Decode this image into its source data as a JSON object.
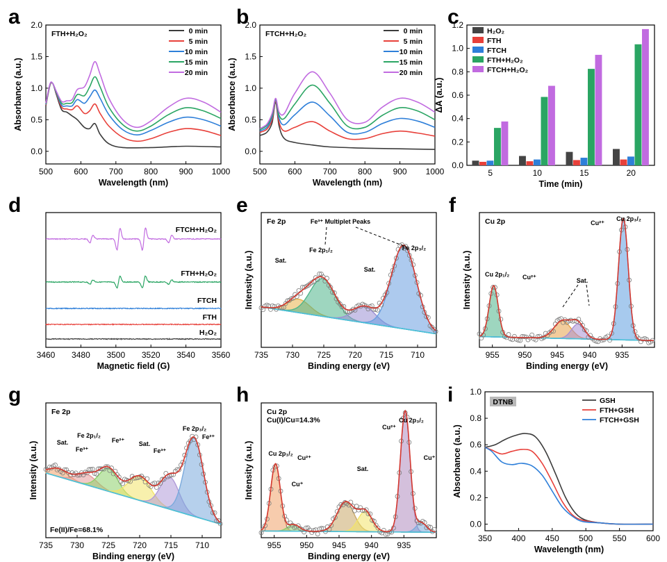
{
  "chart_data": [
    {
      "id": "a",
      "panel_label": "a",
      "type": "line",
      "title": "FTH+H₂O₂",
      "xlabel": "Wavelength (nm)",
      "ylabel": "Absorbance (a.u.)",
      "xlim": [
        500,
        1000
      ],
      "ylim": [
        -0.2,
        2.0
      ],
      "xticks": [
        "500",
        "600",
        "700",
        "800",
        "900",
        "1000"
      ],
      "yticks": [
        "0.0",
        "0.5",
        "1.0",
        "1.5",
        "2.0"
      ],
      "series": [
        {
          "name": "0 min",
          "color": "#3b3b3b",
          "x": [
            500,
            512,
            520,
            530,
            545,
            560,
            575,
            590,
            610,
            625,
            640,
            655,
            680,
            720,
            800,
            900,
            1000
          ],
          "y": [
            0.72,
            1.05,
            1.07,
            0.9,
            0.66,
            0.62,
            0.56,
            0.5,
            0.38,
            0.36,
            0.44,
            0.27,
            0.12,
            0.06,
            0.06,
            0.08,
            0.07
          ]
        },
        {
          "name": "5 min",
          "color": "#e8403a",
          "x": [
            500,
            512,
            520,
            530,
            545,
            560,
            575,
            590,
            610,
            625,
            640,
            655,
            680,
            720,
            760,
            800,
            850,
            900,
            950,
            1000
          ],
          "y": [
            0.73,
            1.05,
            1.07,
            0.92,
            0.7,
            0.67,
            0.66,
            0.72,
            0.6,
            0.64,
            0.75,
            0.6,
            0.4,
            0.22,
            0.16,
            0.2,
            0.3,
            0.36,
            0.33,
            0.25
          ]
        },
        {
          "name": "10 min",
          "color": "#2e7fd9",
          "x": [
            500,
            512,
            520,
            530,
            545,
            560,
            575,
            590,
            610,
            625,
            640,
            655,
            680,
            720,
            760,
            800,
            850,
            900,
            950,
            1000
          ],
          "y": [
            0.74,
            1.06,
            1.07,
            0.93,
            0.73,
            0.72,
            0.72,
            0.82,
            0.76,
            0.86,
            0.97,
            0.84,
            0.58,
            0.34,
            0.26,
            0.33,
            0.46,
            0.54,
            0.5,
            0.4
          ]
        },
        {
          "name": "15 min",
          "color": "#2aa563",
          "x": [
            500,
            512,
            520,
            530,
            545,
            560,
            575,
            590,
            610,
            625,
            640,
            655,
            680,
            720,
            760,
            800,
            850,
            900,
            950,
            1000
          ],
          "y": [
            0.75,
            1.06,
            1.07,
            0.94,
            0.76,
            0.76,
            0.77,
            0.9,
            0.88,
            1.02,
            1.18,
            1.02,
            0.7,
            0.42,
            0.32,
            0.4,
            0.58,
            0.69,
            0.64,
            0.52
          ]
        },
        {
          "name": "20 min",
          "color": "#c16be0",
          "x": [
            500,
            512,
            520,
            530,
            545,
            560,
            575,
            590,
            610,
            625,
            640,
            655,
            680,
            720,
            760,
            800,
            850,
            900,
            950,
            1000
          ],
          "y": [
            0.76,
            1.07,
            1.07,
            0.95,
            0.79,
            0.8,
            0.82,
            0.98,
            1.02,
            1.2,
            1.42,
            1.22,
            0.84,
            0.5,
            0.38,
            0.48,
            0.7,
            0.84,
            0.78,
            0.62
          ]
        }
      ]
    },
    {
      "id": "b",
      "panel_label": "b",
      "type": "line",
      "title": "FTCH+H₂O₂",
      "xlabel": "Wavelength (nm)",
      "ylabel": "Absorbance (a.u.)",
      "xlim": [
        500,
        1000
      ],
      "ylim": [
        -0.2,
        2.0
      ],
      "xticks": [
        "500",
        "600",
        "700",
        "800",
        "900",
        "1000"
      ],
      "yticks": [
        "0.0",
        "0.5",
        "1.0",
        "1.5",
        "2.0"
      ],
      "series": [
        {
          "name": "0 min",
          "color": "#3b3b3b",
          "x": [
            500,
            520,
            535,
            545,
            555,
            570,
            600,
            650,
            700,
            800,
            900,
            1000
          ],
          "y": [
            0.25,
            0.3,
            0.45,
            0.78,
            0.4,
            0.2,
            0.14,
            0.1,
            0.07,
            0.05,
            0.04,
            0.03
          ]
        },
        {
          "name": "5 min",
          "color": "#e8403a",
          "x": [
            500,
            520,
            535,
            545,
            555,
            570,
            600,
            650,
            700,
            750,
            800,
            850,
            900,
            950,
            1000
          ],
          "y": [
            0.3,
            0.35,
            0.5,
            0.8,
            0.46,
            0.32,
            0.38,
            0.47,
            0.32,
            0.2,
            0.2,
            0.28,
            0.32,
            0.29,
            0.24
          ]
        },
        {
          "name": "10 min",
          "color": "#2e7fd9",
          "x": [
            500,
            520,
            535,
            545,
            555,
            570,
            600,
            650,
            700,
            750,
            800,
            850,
            900,
            950,
            1000
          ],
          "y": [
            0.32,
            0.38,
            0.54,
            0.82,
            0.52,
            0.42,
            0.58,
            0.78,
            0.56,
            0.3,
            0.3,
            0.44,
            0.52,
            0.48,
            0.38
          ]
        },
        {
          "name": "15 min",
          "color": "#2aa563",
          "x": [
            500,
            520,
            535,
            545,
            555,
            570,
            600,
            650,
            700,
            750,
            800,
            850,
            900,
            950,
            1000
          ],
          "y": [
            0.34,
            0.41,
            0.57,
            0.83,
            0.57,
            0.52,
            0.75,
            1.05,
            0.76,
            0.4,
            0.38,
            0.57,
            0.69,
            0.64,
            0.5
          ]
        },
        {
          "name": "20 min",
          "color": "#c16be0",
          "x": [
            500,
            520,
            535,
            545,
            555,
            570,
            600,
            650,
            700,
            750,
            800,
            850,
            900,
            950,
            1000
          ],
          "y": [
            0.36,
            0.43,
            0.6,
            0.84,
            0.62,
            0.6,
            0.92,
            1.26,
            0.92,
            0.5,
            0.46,
            0.7,
            0.84,
            0.78,
            0.62
          ]
        }
      ]
    },
    {
      "id": "c",
      "panel_label": "c",
      "type": "bar",
      "xlabel": "Time (min)",
      "ylabel": "ΔA (a.u.)",
      "categories": [
        "5",
        "10",
        "15",
        "20"
      ],
      "ylim": [
        0.0,
        1.2
      ],
      "yticks": [
        "0.0",
        "0.2",
        "0.4",
        "0.6",
        "0.8",
        "1.0",
        "1.2"
      ],
      "series": [
        {
          "name": "H₂O₂",
          "color": "#444444",
          "values": [
            0.04,
            0.08,
            0.115,
            0.14
          ]
        },
        {
          "name": "FTH",
          "color": "#e8403a",
          "values": [
            0.03,
            0.035,
            0.045,
            0.05
          ]
        },
        {
          "name": "FTCH",
          "color": "#2e7fd9",
          "values": [
            0.04,
            0.05,
            0.065,
            0.075
          ]
        },
        {
          "name": "FTH+H₂O₂",
          "color": "#2aa563",
          "values": [
            0.32,
            0.585,
            0.825,
            1.035
          ]
        },
        {
          "name": "FTCH+H₂O₂",
          "color": "#c16be0",
          "values": [
            0.375,
            0.68,
            0.945,
            1.165
          ]
        }
      ]
    },
    {
      "id": "d",
      "panel_label": "d",
      "type": "line",
      "xlabel": "Magnetic field (G)",
      "ylabel": "",
      "xlim": [
        3460,
        3560
      ],
      "xticks": [
        "3460",
        "3480",
        "3500",
        "3520",
        "3540",
        "3560"
      ],
      "epr_lines": [
        3486,
        3501.5,
        3516,
        3531
      ],
      "series": [
        {
          "name": "FTCH+H₂O₂",
          "color": "#c16be0",
          "baseline": 0.86,
          "amplitudes": [
            0.35,
            1.0,
            1.0,
            0.35
          ]
        },
        {
          "name": "FTH+H₂O₂",
          "color": "#2aa563",
          "baseline": 0.6,
          "amplitudes": [
            0.2,
            0.55,
            0.55,
            0.2
          ]
        },
        {
          "name": "FTCH",
          "color": "#2e7fd9",
          "baseline": 0.36,
          "amplitudes": [
            0,
            0,
            0,
            0
          ]
        },
        {
          "name": "FTH",
          "color": "#e8403a",
          "baseline": 0.22,
          "amplitudes": [
            0,
            0,
            0,
            0
          ]
        },
        {
          "name": "H₂O₂",
          "color": "#3b3b3b",
          "baseline": 0.06,
          "amplitudes": [
            0,
            0,
            0,
            0
          ]
        }
      ]
    },
    {
      "id": "e",
      "panel_label": "e",
      "type": "line",
      "title": "Fe 2p",
      "xlabel": "Binding energy (eV)",
      "ylabel": "Intensity (a.u.)",
      "xlim": [
        735,
        707
      ],
      "xticks": [
        "735",
        "730",
        "725",
        "720",
        "715",
        "710"
      ],
      "annotations": [
        "Fe³⁺ Multiplet Peaks",
        "Fe 2p₁/₂",
        "Fe 2p₃/₂",
        "Sat.",
        "Sat."
      ],
      "background": {
        "x": [
          735,
          707
        ],
        "y": [
          0.3,
          0.1
        ]
      },
      "peaks": [
        {
          "name": "Sat.",
          "center": 729,
          "height": 0.1,
          "width": 1.8,
          "color": "#e7b24a"
        },
        {
          "name": "Fe 2p₁/₂",
          "center": 725.2,
          "height": 0.28,
          "width": 2.0,
          "color": "#4fb58a"
        },
        {
          "name": "Sat.",
          "center": 718.5,
          "height": 0.12,
          "width": 1.8,
          "color": "#9b8fd4"
        },
        {
          "name": "Fe 2p₃/₂",
          "center": 712.2,
          "height": 0.62,
          "width": 2.0,
          "color": "#6a9fe0"
        }
      ],
      "envelope_color": "#d4382f"
    },
    {
      "id": "f",
      "panel_label": "f",
      "type": "line",
      "title": "Cu 2p",
      "xlabel": "Binding energy (eV)",
      "ylabel": "Intensity (a.u.)",
      "xlim": [
        957,
        930
      ],
      "xticks": [
        "955",
        "950",
        "945",
        "940",
        "935"
      ],
      "annotations": [
        "Cu 2p₁/₂",
        "Cu²⁺",
        "Sat.",
        "Cu²⁺",
        "Cu 2p₃/₂"
      ],
      "background": {
        "x": [
          957,
          930
        ],
        "y": [
          0.08,
          0.05
        ]
      },
      "peaks": [
        {
          "name": "Cu 2p₁/₂",
          "center": 954.8,
          "height": 0.38,
          "width": 0.7,
          "color": "#4fb58a"
        },
        {
          "name": "Sat.",
          "center": 944.2,
          "height": 0.13,
          "width": 1.3,
          "color": "#e7a24a"
        },
        {
          "name": "Sat.",
          "center": 941.8,
          "height": 0.11,
          "width": 1.0,
          "color": "#a98fd4"
        },
        {
          "name": "Cu 2p₃/₂",
          "center": 934.8,
          "height": 0.9,
          "width": 0.75,
          "color": "#5f9ee0"
        }
      ],
      "envelope_color": "#d4382f"
    },
    {
      "id": "g",
      "panel_label": "g",
      "type": "line",
      "title": "Fe 2p",
      "xlabel": "Binding energy (eV)",
      "ylabel": "Intensity (a.u.)",
      "xlim": [
        735,
        707
      ],
      "xticks": [
        "735",
        "730",
        "725",
        "720",
        "715",
        "710"
      ],
      "footnote": "Fe(II)/Fe=68.1%",
      "annotations": [
        "Sat.",
        "Fe³⁺",
        "Fe 2p₁/₂",
        "Fe²⁺",
        "Sat.",
        "Fe³⁺",
        "Fe 2p₃/₂",
        "Fe²⁺"
      ],
      "background": {
        "x": [
          735,
          707
        ],
        "y": [
          0.48,
          0.1
        ]
      },
      "peaks": [
        {
          "name": "Sat.",
          "center": 733,
          "height": 0.06,
          "width": 1.5,
          "color": "#f0a36a"
        },
        {
          "name": "Fe³⁺",
          "center": 728.5,
          "height": 0.08,
          "width": 1.6,
          "color": "#e89a9a"
        },
        {
          "name": "Fe²⁺",
          "center": 725,
          "height": 0.17,
          "width": 1.5,
          "color": "#8dd06a"
        },
        {
          "name": "Sat.",
          "center": 720,
          "height": 0.18,
          "width": 1.8,
          "color": "#f2e36a"
        },
        {
          "name": "Fe³⁺",
          "center": 715.2,
          "height": 0.24,
          "width": 1.5,
          "color": "#b09ad8"
        },
        {
          "name": "Fe²⁺",
          "center": 711.3,
          "height": 0.58,
          "width": 1.5,
          "color": "#7aaadc"
        }
      ],
      "envelope_color": "#d4382f"
    },
    {
      "id": "h",
      "panel_label": "h",
      "type": "line",
      "title": "Cu 2p",
      "xlabel": "Binding energy (eV)",
      "ylabel": "Intensity (a.u.)",
      "xlim": [
        957,
        930
      ],
      "xticks": [
        "955",
        "950",
        "945",
        "940",
        "935"
      ],
      "subtitle": "Cu(I)/Cu=14.3%",
      "annotations": [
        "Cu 2p₁/₂",
        "Cu²⁺",
        "Cu⁺",
        "Sat.",
        "Cu²⁺",
        "Cu 2p₃/₂",
        "Cu⁺"
      ],
      "background": {
        "x": [
          957,
          930
        ],
        "y": [
          0.05,
          0.04
        ]
      },
      "peaks": [
        {
          "name": "Cu 2p₁/₂",
          "center": 954.8,
          "height": 0.5,
          "width": 0.75,
          "color": "#f0a36a"
        },
        {
          "name": "Cu⁺",
          "center": 952,
          "height": 0.05,
          "width": 0.9,
          "color": "#8dd06a"
        },
        {
          "name": "Sat.",
          "center": 944,
          "height": 0.22,
          "width": 1.3,
          "color": "#c8a868"
        },
        {
          "name": "Sat.",
          "center": 941,
          "height": 0.15,
          "width": 1.1,
          "color": "#f2e36a"
        },
        {
          "name": "Cu 2p₃/₂",
          "center": 934.8,
          "height": 0.9,
          "width": 0.75,
          "color": "#b08cc0"
        },
        {
          "name": "Cu⁺",
          "center": 932.3,
          "height": 0.07,
          "width": 0.8,
          "color": "#7aaadc"
        }
      ],
      "envelope_color": "#d4382f"
    },
    {
      "id": "i",
      "panel_label": "i",
      "type": "line",
      "title": "DTNB",
      "xlabel": "Wavelength (nm)",
      "ylabel": "Absorbance (a.u.)",
      "xlim": [
        350,
        600
      ],
      "ylim": [
        -0.05,
        1.0
      ],
      "xticks": [
        "350",
        "400",
        "450",
        "500",
        "550",
        "600"
      ],
      "yticks": [
        "0.0",
        "0.2",
        "0.4",
        "0.6",
        "0.8",
        "1.0"
      ],
      "series": [
        {
          "name": "GSH",
          "color": "#3b3b3b",
          "x": [
            350,
            365,
            380,
            395,
            410,
            425,
            440,
            455,
            470,
            485,
            500,
            520,
            550,
            600
          ],
          "y": [
            0.58,
            0.6,
            0.64,
            0.67,
            0.685,
            0.66,
            0.55,
            0.38,
            0.2,
            0.08,
            0.03,
            0.01,
            0.0,
            0.0
          ]
        },
        {
          "name": "FTH+GSH",
          "color": "#e8403a",
          "x": [
            350,
            360,
            375,
            390,
            405,
            420,
            435,
            450,
            465,
            480,
            495,
            520,
            550,
            600
          ],
          "y": [
            0.58,
            0.56,
            0.53,
            0.55,
            0.565,
            0.55,
            0.46,
            0.32,
            0.17,
            0.07,
            0.03,
            0.01,
            0.0,
            0.0
          ]
        },
        {
          "name": "FTCH+GSH",
          "color": "#2e7fd9",
          "x": [
            350,
            360,
            375,
            390,
            405,
            420,
            435,
            450,
            465,
            480,
            495,
            520,
            550,
            600
          ],
          "y": [
            0.58,
            0.55,
            0.47,
            0.45,
            0.46,
            0.44,
            0.37,
            0.25,
            0.13,
            0.06,
            0.02,
            0.01,
            0.0,
            0.0
          ]
        }
      ]
    }
  ]
}
